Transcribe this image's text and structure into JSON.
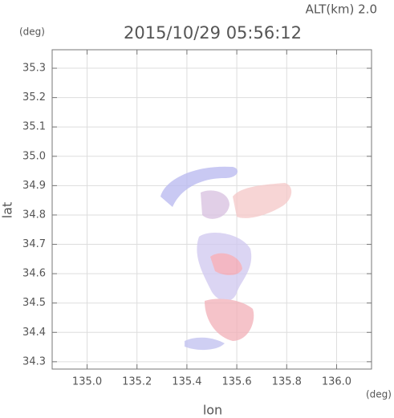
{
  "chart_data": {
    "type": "image",
    "title": "2015/10/29 05:56:12",
    "subtitle": "ALT(km) 2.0",
    "y_unit": "(deg)",
    "x_unit": "(deg)",
    "xlabel": "lon",
    "ylabel": "lat",
    "xlim": [
      134.86,
      136.14
    ],
    "ylim": [
      34.275,
      35.363
    ],
    "xticks": [
      {
        "value": 135,
        "label": "135.0"
      },
      135.2,
      135.4,
      135.6,
      135.8,
      {
        "value": 136,
        "label": "136.0"
      }
    ],
    "yticks": [
      34.3,
      34.4,
      34.5,
      34.6,
      34.7,
      34.8,
      34.9,
      {
        "value": 35,
        "label": "35.0"
      },
      35.1,
      35.2,
      35.3
    ],
    "grid": true
  }
}
